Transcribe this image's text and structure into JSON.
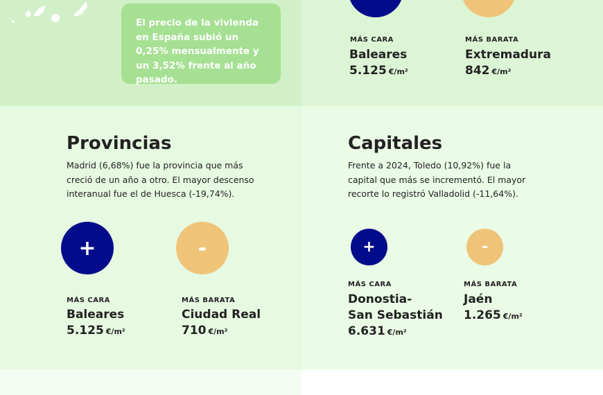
{
  "summary": {
    "text": "El precio de la vivienda en España subió un 0,25% mensualmente y un 3,52% frente al año pasado."
  },
  "comunidades": {
    "cara": {
      "badge": "MÁS CARA",
      "place": "Baleares",
      "price": "5.125",
      "unit": "€/m²"
    },
    "barata": {
      "badge": "MÁS BARATA",
      "place": "Extremadura",
      "price": "842",
      "unit": "€/m²"
    }
  },
  "provincias": {
    "title": "Provincias",
    "desc": "Madrid (6,68%) fue la provincia que más creció de un año a otro. El mayor descenso interanual fue el de Huesca (-19,74%).",
    "plus_symbol": "+",
    "minus_symbol": "-",
    "cara": {
      "badge": "MÁS CARA",
      "place": "Baleares",
      "price": "5.125",
      "unit": "€/m²"
    },
    "barata": {
      "badge": "MÁS BARATA",
      "place": "Ciudad Real",
      "price": "710",
      "unit": "€/m²"
    }
  },
  "capitales": {
    "title": "Capitales",
    "desc": "Frente a 2024, Toledo (10,92%) fue la capital que más se incrementó. El mayor recorte lo registró Valladolid (-11,64%).",
    "plus_symbol": "+",
    "minus_symbol": "-",
    "cara": {
      "badge": "MÁS CARA",
      "place_line1": "Donostia-",
      "place_line2": "San Sebastián",
      "price": "6.631",
      "unit": "€/m²"
    },
    "barata": {
      "badge": "MÁS BARATA",
      "place": "Jaén",
      "price": "1.265",
      "unit": "€/m²"
    }
  },
  "colors": {
    "plus_circle": "#020c8a",
    "minus_circle": "#f0c478",
    "info_box": "#a6e092"
  }
}
